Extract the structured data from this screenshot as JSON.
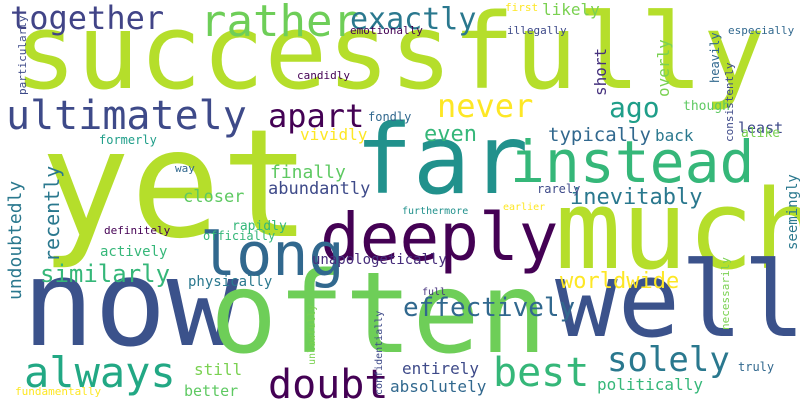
{
  "words": [
    {
      "text": "successfully",
      "color": "#b5de2b"
    },
    {
      "text": "yet",
      "color": "#b5de2b"
    },
    {
      "text": "far",
      "color": "#21918c"
    },
    {
      "text": "instead",
      "color": "#35b779"
    },
    {
      "text": "much",
      "color": "#b5de2b"
    },
    {
      "text": "now",
      "color": "#3b528b"
    },
    {
      "text": "often",
      "color": "#6ece58"
    },
    {
      "text": "well",
      "color": "#3b528b"
    },
    {
      "text": "deeply",
      "color": "#440154"
    },
    {
      "text": "long",
      "color": "#31688e"
    },
    {
      "text": "ultimately",
      "color": "#3e4a89"
    },
    {
      "text": "together",
      "color": "#414487"
    },
    {
      "text": "rather",
      "color": "#6ece58"
    },
    {
      "text": "exactly",
      "color": "#2a788e"
    },
    {
      "text": "never",
      "color": "#fde725"
    },
    {
      "text": "apart",
      "color": "#440154"
    },
    {
      "text": "ago",
      "color": "#1f9e89"
    },
    {
      "text": "best",
      "color": "#35b779"
    },
    {
      "text": "doubt",
      "color": "#440154"
    },
    {
      "text": "always",
      "color": "#22a884"
    },
    {
      "text": "solely",
      "color": "#2a788e"
    },
    {
      "text": "effectively",
      "color": "#31688e"
    },
    {
      "text": "worldwide",
      "color": "#fde725"
    },
    {
      "text": "inevitably",
      "color": "#2a788e"
    },
    {
      "text": "similarly",
      "color": "#35b779"
    },
    {
      "text": "typically",
      "color": "#31688e"
    },
    {
      "text": "even",
      "color": "#35b779"
    },
    {
      "text": "undoubtedly",
      "color": "#2a788e"
    },
    {
      "text": "recently",
      "color": "#2a788e"
    },
    {
      "text": "finally",
      "color": "#5ec962"
    },
    {
      "text": "abundantly",
      "color": "#3e4a89"
    },
    {
      "text": "closer",
      "color": "#5ec962"
    },
    {
      "text": "vividly",
      "color": "#fde725"
    },
    {
      "text": "back",
      "color": "#2a788e"
    },
    {
      "text": "though",
      "color": "#5ec962"
    },
    {
      "text": "least",
      "color": "#3e4a89"
    },
    {
      "text": "likely",
      "color": "#7ad151"
    },
    {
      "text": "short",
      "color": "#46327e"
    },
    {
      "text": "overly",
      "color": "#7ad151"
    },
    {
      "text": "heavily",
      "color": "#31688e"
    },
    {
      "text": "consistently",
      "color": "#3e4a89"
    },
    {
      "text": "seemingly",
      "color": "#2a788e"
    },
    {
      "text": "alike",
      "color": "#7ad151"
    },
    {
      "text": "politically",
      "color": "#35b779"
    },
    {
      "text": "entirely",
      "color": "#3e4a89"
    },
    {
      "text": "absolutely",
      "color": "#31688e"
    },
    {
      "text": "still",
      "color": "#7ad151"
    },
    {
      "text": "better",
      "color": "#5ec962"
    },
    {
      "text": "physically",
      "color": "#2a788e"
    },
    {
      "text": "actively",
      "color": "#35b779"
    },
    {
      "text": "rapidly",
      "color": "#35b779"
    },
    {
      "text": "unapologetically",
      "color": "#472d7b"
    },
    {
      "text": "officially",
      "color": "#35b779"
    },
    {
      "text": "definitely",
      "color": "#440154"
    },
    {
      "text": "way",
      "color": "#31688e"
    },
    {
      "text": "formerly",
      "color": "#1f9e89"
    },
    {
      "text": "fondly",
      "color": "#31688e"
    },
    {
      "text": "candidly",
      "color": "#440154"
    },
    {
      "text": "emotionally",
      "color": "#440154"
    },
    {
      "text": "illegally",
      "color": "#3e4a89"
    },
    {
      "text": "first",
      "color": "#fde725"
    },
    {
      "text": "especially",
      "color": "#31688e"
    },
    {
      "text": "particularly",
      "color": "#3e4a89"
    },
    {
      "text": "furthermore",
      "color": "#21918c"
    },
    {
      "text": "earlier",
      "color": "#fde725"
    },
    {
      "text": "rarely",
      "color": "#3e4a89"
    },
    {
      "text": "necessarily",
      "color": "#7ad151"
    },
    {
      "text": "full",
      "color": "#46327e"
    },
    {
      "text": "unlawfully",
      "color": "#7ad151"
    },
    {
      "text": "confidentially",
      "color": "#3e4a89"
    },
    {
      "text": "truly",
      "color": "#31688e"
    },
    {
      "text": "fundamentally",
      "color": "#fde725"
    }
  ]
}
